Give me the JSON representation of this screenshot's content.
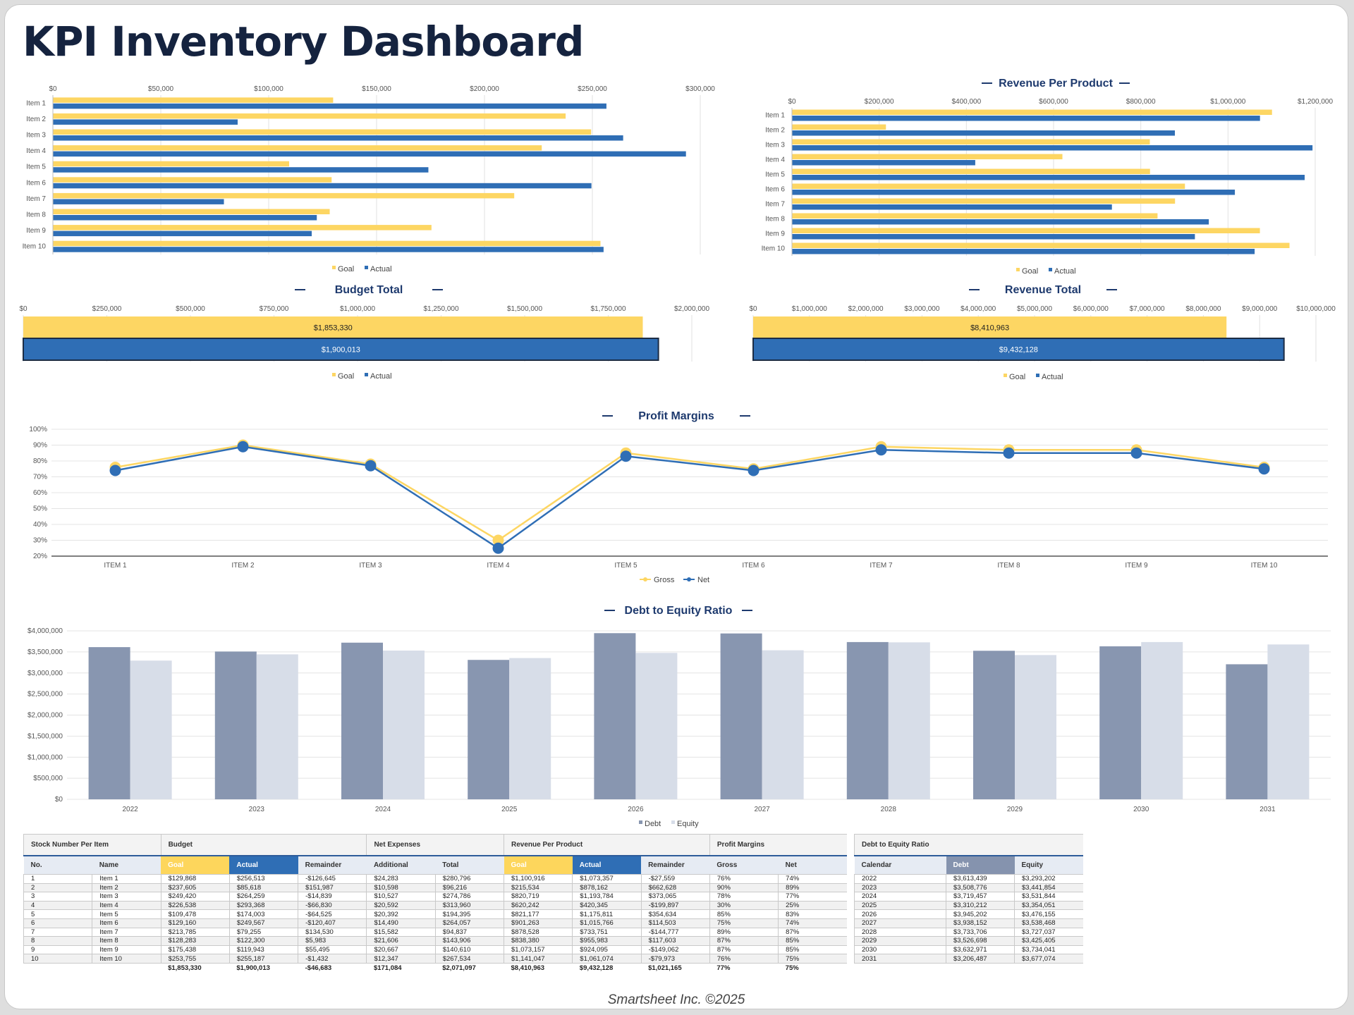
{
  "page_title": "KPI Inventory Dashboard",
  "colors": {
    "goal": "#fdd663",
    "actual": "#2f6eb5",
    "debt": "#8896b0",
    "equity": "#d7dde8",
    "title": "#1e3a6e"
  },
  "legend": {
    "goal": "Goal",
    "actual": "Actual",
    "gross": "Gross",
    "net": "Net",
    "debt": "Debt",
    "equity": "Equity"
  },
  "chart_data": [
    {
      "id": "budget-per-product",
      "type": "bar",
      "orientation": "horizontal",
      "title": "",
      "categories": [
        "Item 1",
        "Item 2",
        "Item 3",
        "Item 4",
        "Item 5",
        "Item 6",
        "Item 7",
        "Item 8",
        "Item 9",
        "Item 10"
      ],
      "series": [
        {
          "name": "Goal",
          "values": [
            129868,
            237605,
            249420,
            226538,
            109478,
            129160,
            213785,
            128283,
            175438,
            253755
          ]
        },
        {
          "name": "Actual",
          "values": [
            256513,
            85618,
            264259,
            293368,
            174003,
            249567,
            79255,
            122300,
            119943,
            255187
          ]
        }
      ],
      "xlim": [
        0,
        300000
      ],
      "xticks": [
        "$0",
        "$50,000",
        "$100,000",
        "$150,000",
        "$200,000",
        "$250,000",
        "$300,000"
      ],
      "legend_position": "bottom"
    },
    {
      "id": "revenue-per-product",
      "type": "bar",
      "orientation": "horizontal",
      "title": "Revenue Per Product",
      "categories": [
        "Item 1",
        "Item 2",
        "Item 3",
        "Item 4",
        "Item 5",
        "Item 6",
        "Item 7",
        "Item 8",
        "Item 9",
        "Item 10"
      ],
      "series": [
        {
          "name": "Goal",
          "values": [
            1100916,
            215534,
            820719,
            620242,
            821177,
            901263,
            878528,
            838380,
            1073157,
            1141047
          ]
        },
        {
          "name": "Actual",
          "values": [
            1073357,
            878162,
            1193784,
            420345,
            1175811,
            1015766,
            733751,
            955983,
            924095,
            1061074
          ]
        }
      ],
      "xlim": [
        0,
        1200000
      ],
      "xticks": [
        "$0",
        "$200,000",
        "$400,000",
        "$600,000",
        "$800,000",
        "$1,000,000",
        "$1,200,000"
      ],
      "legend_position": "bottom"
    },
    {
      "id": "budget-total",
      "type": "bar",
      "orientation": "horizontal",
      "title": "Budget Total",
      "categories": [
        "Goal",
        "Actual"
      ],
      "values": [
        1853330,
        1900013
      ],
      "value_labels": [
        "$1,853,330",
        "$1,900,013"
      ],
      "xlim": [
        0,
        2000000
      ],
      "xticks": [
        "$0",
        "$250,000",
        "$500,000",
        "$750,000",
        "$1,000,000",
        "$1,250,000",
        "$1,500,000",
        "$1,750,000",
        "$2,000,000"
      ],
      "legend_position": "bottom"
    },
    {
      "id": "revenue-total",
      "type": "bar",
      "orientation": "horizontal",
      "title": "Revenue Total",
      "categories": [
        "Goal",
        "Actual"
      ],
      "values": [
        8410963,
        9432128
      ],
      "value_labels": [
        "$8,410,963",
        "$9,432,128"
      ],
      "xlim": [
        0,
        10000000
      ],
      "xticks": [
        "$0",
        "$1,000,000",
        "$2,000,000",
        "$3,000,000",
        "$4,000,000",
        "$5,000,000",
        "$6,000,000",
        "$7,000,000",
        "$8,000,000",
        "$9,000,000",
        "$10,000,000"
      ],
      "legend_position": "bottom"
    },
    {
      "id": "profit-margins",
      "type": "line",
      "title": "Profit Margins",
      "categories": [
        "ITEM 1",
        "ITEM 2",
        "ITEM 3",
        "ITEM 4",
        "ITEM 5",
        "ITEM 6",
        "ITEM 7",
        "ITEM 8",
        "ITEM 9",
        "ITEM 10"
      ],
      "series": [
        {
          "name": "Gross",
          "values": [
            76,
            90,
            78,
            30,
            85,
            75,
            89,
            87,
            87,
            76
          ]
        },
        {
          "name": "Net",
          "values": [
            74,
            89,
            77,
            25,
            83,
            74,
            87,
            85,
            85,
            75
          ]
        }
      ],
      "ylim": [
        20,
        100
      ],
      "yticks": [
        "20%",
        "30%",
        "40%",
        "50%",
        "60%",
        "70%",
        "80%",
        "90%",
        "100%"
      ],
      "legend_position": "bottom"
    },
    {
      "id": "debt-to-equity",
      "type": "bar",
      "title": "Debt to Equity Ratio",
      "categories": [
        "2022",
        "2023",
        "2024",
        "2025",
        "2026",
        "2027",
        "2028",
        "2029",
        "2030",
        "2031"
      ],
      "series": [
        {
          "name": "Debt",
          "values": [
            3613439,
            3508776,
            3719457,
            3310212,
            3945202,
            3938152,
            3733706,
            3526698,
            3632971,
            3206487
          ]
        },
        {
          "name": "Equity",
          "values": [
            3293202,
            3441854,
            3531844,
            3354051,
            3476155,
            3538468,
            3727037,
            3425405,
            3734041,
            3677074
          ]
        }
      ],
      "ylim": [
        0,
        4000000
      ],
      "yticks": [
        "$0",
        "$500,000",
        "$1,000,000",
        "$1,500,000",
        "$2,000,000",
        "$2,500,000",
        "$3,000,000",
        "$3,500,000",
        "$4,000,000"
      ],
      "legend_position": "bottom"
    }
  ],
  "main_table": {
    "groups": [
      "Stock Number Per Item",
      "Budget",
      "Net Expenses",
      "Revenue Per Product",
      "Profit Margins"
    ],
    "headers": [
      "No.",
      "Name",
      "Goal",
      "Actual",
      "Remainder",
      "Additional",
      "Total",
      "Goal",
      "Actual",
      "Remainder",
      "Gross",
      "Net"
    ],
    "rows": [
      [
        "1",
        "Item 1",
        "$129,868",
        "$256,513",
        "-$126,645",
        "$24,283",
        "$280,796",
        "$1,100,916",
        "$1,073,357",
        "-$27,559",
        "76%",
        "74%"
      ],
      [
        "2",
        "Item 2",
        "$237,605",
        "$85,618",
        "$151,987",
        "$10,598",
        "$96,216",
        "$215,534",
        "$878,162",
        "$662,628",
        "90%",
        "89%"
      ],
      [
        "3",
        "Item 3",
        "$249,420",
        "$264,259",
        "-$14,839",
        "$10,527",
        "$274,786",
        "$820,719",
        "$1,193,784",
        "$373,065",
        "78%",
        "77%"
      ],
      [
        "4",
        "Item 4",
        "$226,538",
        "$293,368",
        "-$66,830",
        "$20,592",
        "$313,960",
        "$620,242",
        "$420,345",
        "-$199,897",
        "30%",
        "25%"
      ],
      [
        "5",
        "Item 5",
        "$109,478",
        "$174,003",
        "-$64,525",
        "$20,392",
        "$194,395",
        "$821,177",
        "$1,175,811",
        "$354,634",
        "85%",
        "83%"
      ],
      [
        "6",
        "Item 6",
        "$129,160",
        "$249,567",
        "-$120,407",
        "$14,490",
        "$264,057",
        "$901,263",
        "$1,015,766",
        "$114,503",
        "75%",
        "74%"
      ],
      [
        "7",
        "Item 7",
        "$213,785",
        "$79,255",
        "$134,530",
        "$15,582",
        "$94,837",
        "$878,528",
        "$733,751",
        "-$144,777",
        "89%",
        "87%"
      ],
      [
        "8",
        "Item 8",
        "$128,283",
        "$122,300",
        "$5,983",
        "$21,606",
        "$143,906",
        "$838,380",
        "$955,983",
        "$117,603",
        "87%",
        "85%"
      ],
      [
        "9",
        "Item 9",
        "$175,438",
        "$119,943",
        "$55,495",
        "$20,667",
        "$140,610",
        "$1,073,157",
        "$924,095",
        "-$149,062",
        "87%",
        "85%"
      ],
      [
        "10",
        "Item 10",
        "$253,755",
        "$255,187",
        "-$1,432",
        "$12,347",
        "$267,534",
        "$1,141,047",
        "$1,061,074",
        "-$79,973",
        "76%",
        "75%"
      ]
    ],
    "totals": [
      "",
      "",
      "$1,853,330",
      "$1,900,013",
      "-$46,683",
      "$171,084",
      "$2,071,097",
      "$8,410,963",
      "$9,432,128",
      "$1,021,165",
      "77%",
      "75%"
    ]
  },
  "debt_table": {
    "group": "Debt to Equity Ratio",
    "headers": [
      "Calendar",
      "Debt",
      "Equity"
    ],
    "rows": [
      [
        "2022",
        "$3,613,439",
        "$3,293,202"
      ],
      [
        "2023",
        "$3,508,776",
        "$3,441,854"
      ],
      [
        "2024",
        "$3,719,457",
        "$3,531,844"
      ],
      [
        "2025",
        "$3,310,212",
        "$3,354,051"
      ],
      [
        "2026",
        "$3,945,202",
        "$3,476,155"
      ],
      [
        "2027",
        "$3,938,152",
        "$3,538,468"
      ],
      [
        "2028",
        "$3,733,706",
        "$3,727,037"
      ],
      [
        "2029",
        "$3,526,698",
        "$3,425,405"
      ],
      [
        "2030",
        "$3,632,971",
        "$3,734,041"
      ],
      [
        "2031",
        "$3,206,487",
        "$3,677,074"
      ]
    ]
  },
  "footer": "Smartsheet Inc. ©2025"
}
